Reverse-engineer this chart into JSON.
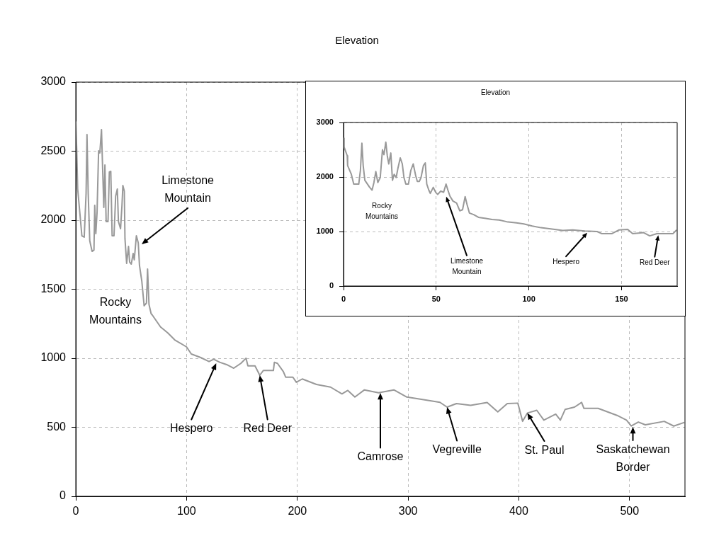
{
  "chart_data": [
    {
      "type": "line",
      "title": "Elevation",
      "xlim": [
        0,
        550
      ],
      "ylim": [
        0,
        3000
      ],
      "xticks": [
        0,
        100,
        200,
        300,
        400,
        500
      ],
      "yticks": [
        0,
        500,
        1000,
        1500,
        2000,
        2500,
        3000
      ],
      "grid": true,
      "x": [
        0,
        0.8,
        1.7,
        3.8,
        5.5,
        7.6,
        9.3,
        10.1,
        11.2,
        12.6,
        14.7,
        16.4,
        17.1,
        18.1,
        19.2,
        20.6,
        21.7,
        23.2,
        24,
        25.3,
        26.3,
        27.4,
        29.1,
        30.3,
        31.6,
        32.8,
        34.5,
        36,
        37.5,
        38.5,
        40.4,
        41.7,
        42.5,
        43.8,
        44.4,
        45.9,
        47.6,
        48.6,
        50.1,
        51.8,
        52.8,
        54.7,
        56.4,
        57.5,
        59.6,
        61.7,
        63.8,
        64.8,
        66.1,
        68,
        69.1,
        76.5,
        82.9,
        89.3,
        100,
        104.3,
        112.8,
        120.3,
        124.5,
        129.9,
        136.2,
        142.6,
        149,
        153.7,
        155.4,
        161.8,
        166.1,
        169.3,
        178.4,
        179.3,
        182.1,
        187.4,
        189.5,
        196,
        199.1,
        204.5,
        217.3,
        230,
        240.3,
        245.6,
        252,
        260.6,
        273.3,
        287.2,
        298.9,
        316,
        328.8,
        335.2,
        343.7,
        356.5,
        371.4,
        381,
        389.6,
        399.1,
        403.4,
        407.7,
        416.2,
        422.6,
        433.3,
        437.5,
        441.8,
        450.3,
        456.7,
        458.8,
        471.6,
        488.7,
        497.2,
        501.5,
        507.9,
        514.2,
        531.3,
        539.9,
        549.5
      ],
      "series": [
        {
          "color": "#999999",
          "values": [
            2715,
            2518,
            2227,
            2040,
            1886,
            1877,
            2195,
            2620,
            2195,
            1851,
            1774,
            1784,
            2108,
            1903,
            2056,
            2503,
            2487,
            2656,
            2436,
            2092,
            2400,
            1990,
            1990,
            2349,
            2354,
            1887,
            1887,
            2174,
            2226,
            1990,
            1938,
            2108,
            2251,
            2210,
            1867,
            1687,
            1810,
            1697,
            1682,
            1759,
            1713,
            1887,
            1836,
            1672,
            1559,
            1380,
            1400,
            1646,
            1390,
            1323,
            1313,
            1227,
            1185,
            1133,
            1082,
            1031,
            1005,
            976,
            993,
            971,
            954,
            928,
            963,
            1000,
            945,
            945,
            877,
            911,
            911,
            971,
            963,
            903,
            863,
            863,
            826,
            850,
            810,
            791,
            742,
            767,
            719,
            771,
            750,
            771,
            719,
            698,
            681,
            646,
            672,
            659,
            680,
            612,
            672,
            675,
            543,
            603,
            623,
            552,
            595,
            552,
            629,
            646,
            680,
            637,
            637,
            586,
            552,
            509,
            538,
            518,
            543,
            509,
            535
          ]
        }
      ],
      "annotations": [
        {
          "text": "Limestone\nMountain",
          "x": 59.5,
          "y": 1826
        },
        "Rocky\nMountains",
        {
          "text": "Hespero",
          "x": 126.8,
          "y": 964
        },
        {
          "text": "Red Deer",
          "x": 166.1,
          "y": 877
        },
        {
          "text": "Camrose",
          "x": 275,
          "y": 749
        },
        {
          "text": "Vegreville",
          "x": 335.2,
          "y": 646
        },
        {
          "text": "St. Paul",
          "x": 407.7,
          "y": 603
        },
        {
          "text": "Saskatchewan\nBorder",
          "x": 503,
          "y": 503
        }
      ]
    },
    {
      "type": "line",
      "title": "Elevation",
      "xlim": [
        0,
        180
      ],
      "ylim": [
        0,
        3000
      ],
      "xticks": [
        0,
        50,
        100,
        150
      ],
      "yticks": [
        0,
        1000,
        2000,
        3000
      ],
      "grid": true,
      "x": [
        0,
        0.3,
        2,
        2.2,
        4.2,
        5.5,
        8.2,
        9.1,
        9.9,
        10.6,
        11.5,
        14.1,
        15.4,
        16.4,
        17.4,
        18.5,
        19.8,
        21,
        21.8,
        22.8,
        23.6,
        24.4,
        25.5,
        26.4,
        27.3,
        28.4,
        29.4,
        30.6,
        31.7,
        32.6,
        33.6,
        35,
        36.3,
        37.6,
        38.9,
        39.8,
        40.9,
        41.8,
        43.1,
        44.1,
        44.9,
        46,
        46.8,
        48.4,
        49.7,
        50.8,
        52.4,
        54,
        55.3,
        56.3,
        57.4,
        59,
        61,
        62.7,
        64.2,
        65.6,
        66.6,
        67.9,
        70.2,
        72.8,
        76.8,
        80.1,
        84,
        88,
        93.3,
        97.2,
        101.8,
        106.5,
        111.7,
        118.3,
        123.6,
        130.2,
        136.8,
        139.4,
        144.7,
        148.7,
        153.3,
        156,
        159.2,
        161.9,
        165.2,
        169.1,
        177.7,
        179.7
      ],
      "series": [
        {
          "color": "#999999",
          "values": [
            2710,
            2550,
            2390,
            2210,
            2050,
            1870,
            1870,
            2120,
            2620,
            2210,
            1940,
            1810,
            1760,
            1900,
            2100,
            1900,
            1990,
            2500,
            2410,
            2640,
            2390,
            2240,
            2440,
            1940,
            2050,
            1990,
            2170,
            2350,
            2240,
            1990,
            1870,
            1870,
            2120,
            2240,
            2030,
            1920,
            1920,
            1990,
            2210,
            2260,
            1870,
            1760,
            1700,
            1810,
            1720,
            1680,
            1740,
            1720,
            1870,
            1760,
            1650,
            1560,
            1520,
            1380,
            1400,
            1640,
            1500,
            1340,
            1310,
            1260,
            1240,
            1220,
            1210,
            1180,
            1160,
            1140,
            1100,
            1070,
            1050,
            1020,
            1030,
            1010,
            1000,
            960,
            960,
            1030,
            1040,
            960,
            970,
            980,
            920,
            960,
            960,
            1030
          ]
        }
      ],
      "annotations": [
        "Rocky\nMountains",
        {
          "text": "Limestone\nMountain",
          "x": 55.4,
          "y": 1638
        },
        {
          "text": "Hespero",
          "x": 131.5,
          "y": 978
        },
        {
          "text": "Red Deer",
          "x": 169.8,
          "y": 933
        }
      ]
    }
  ]
}
